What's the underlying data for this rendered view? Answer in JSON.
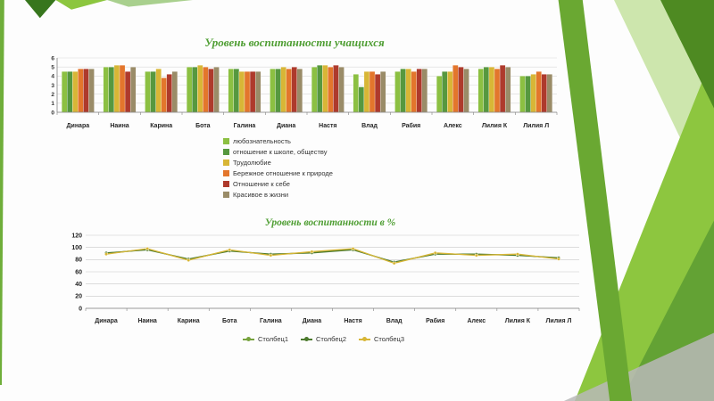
{
  "slide": {
    "accent_colors": [
      "#8dc63f",
      "#4e8a22",
      "#a9d08e",
      "#6aa832",
      "#b9b9b9"
    ]
  },
  "chart_data": [
    {
      "type": "bar",
      "title": "Уровень воспитанности учащихся",
      "title_color": "#4f9e33",
      "categories": [
        "Динара",
        "Наина",
        "Карина",
        "Бота",
        "Галина",
        "Диана",
        "Настя",
        "Влад",
        "Рабия",
        "Алекс",
        "Лилия К",
        "Лилия Л"
      ],
      "series": [
        {
          "name": "любознательность",
          "color": "#8cc042",
          "values": [
            4.5,
            5.0,
            4.5,
            5.0,
            4.8,
            4.8,
            5.0,
            4.2,
            4.5,
            4.0,
            4.8,
            4.0
          ]
        },
        {
          "name": "отношение к школе, обществу",
          "color": "#56983f",
          "values": [
            4.5,
            5.0,
            4.5,
            5.0,
            4.8,
            4.8,
            5.2,
            2.8,
            4.8,
            4.5,
            5.0,
            4.0
          ]
        },
        {
          "name": "Трудолюбие",
          "color": "#d8b636",
          "values": [
            4.5,
            5.2,
            4.8,
            5.2,
            4.5,
            5.0,
            5.2,
            4.5,
            4.8,
            4.5,
            5.0,
            4.2
          ]
        },
        {
          "name": "Бережное отношение к природе",
          "color": "#e3762c",
          "values": [
            4.8,
            5.2,
            3.8,
            5.0,
            4.5,
            4.8,
            5.0,
            4.5,
            4.5,
            5.2,
            4.8,
            4.5
          ]
        },
        {
          "name": "Отношение к себе",
          "color": "#ae3a2c",
          "values": [
            4.8,
            4.5,
            4.2,
            4.8,
            4.5,
            5.0,
            5.2,
            4.2,
            4.8,
            5.0,
            5.2,
            4.2
          ]
        },
        {
          "name": "Красивое в жизни",
          "color": "#9a8c68",
          "values": [
            4.8,
            5.0,
            4.5,
            5.0,
            4.5,
            4.8,
            5.0,
            4.5,
            4.8,
            4.8,
            5.0,
            4.2
          ]
        }
      ],
      "ylim": [
        0,
        6
      ],
      "yticks": [
        0,
        1,
        2,
        3,
        4,
        5,
        6
      ],
      "grid": true,
      "legend_position": "below-left"
    },
    {
      "type": "line",
      "title": "Уровень воспитанности в %",
      "title_color": "#4f9e33",
      "categories": [
        "Динара",
        "Наина",
        "Карина",
        "Бота",
        "Галина",
        "Диана",
        "Настя",
        "Влад",
        "Рабия",
        "Алекс",
        "Лилия К",
        "Лилия Л"
      ],
      "series": [
        {
          "name": "Столбец1",
          "color": "#77a33e",
          "values": [
            90,
            97,
            80,
            95,
            88,
            92,
            97,
            75,
            90,
            88,
            88,
            82
          ]
        },
        {
          "name": "Столбец2",
          "color": "#4c7a2e",
          "values": [
            91,
            96,
            81,
            94,
            89,
            91,
            96,
            76,
            89,
            89,
            87,
            83
          ]
        },
        {
          "name": "Столбец3",
          "color": "#d8b636",
          "values": [
            89,
            98,
            79,
            96,
            87,
            93,
            98,
            74,
            91,
            87,
            89,
            81
          ]
        }
      ],
      "ylim": [
        0,
        120
      ],
      "yticks": [
        0,
        20,
        40,
        60,
        80,
        100,
        120
      ],
      "grid": true,
      "legend_position": "bottom-center"
    }
  ]
}
